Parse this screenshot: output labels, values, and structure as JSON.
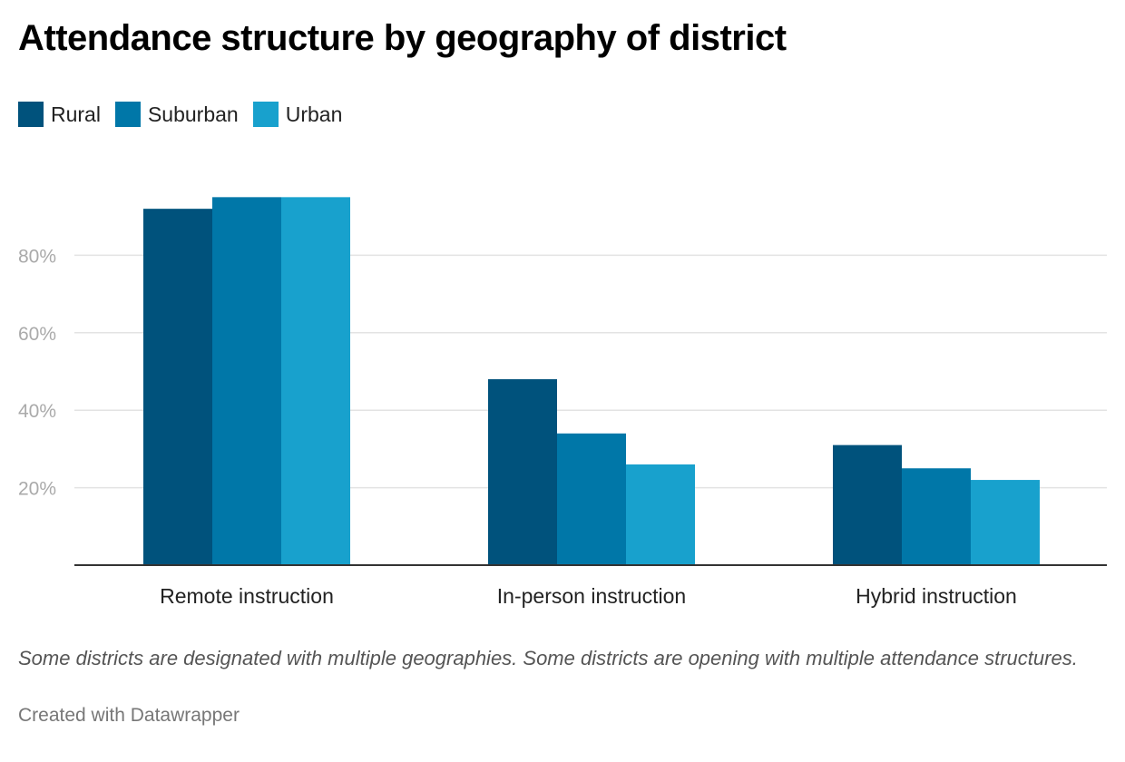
{
  "chart_data": {
    "type": "bar",
    "title": "Attendance structure by geography of district",
    "categories": [
      "Remote instruction",
      "In-person instruction",
      "Hybrid instruction"
    ],
    "series": [
      {
        "name": "Rural",
        "color": "#00527c",
        "values": [
          92,
          48,
          31
        ]
      },
      {
        "name": "Suburban",
        "color": "#0077a8",
        "values": [
          95,
          34,
          25
        ]
      },
      {
        "name": "Urban",
        "color": "#18a1cd",
        "values": [
          95,
          26,
          22
        ]
      }
    ],
    "ylim": [
      0,
      95
    ],
    "yticks": [
      20,
      40,
      60,
      80
    ],
    "ytick_labels": [
      "20%",
      "40%",
      "60%",
      "80%"
    ],
    "grid": true,
    "legend": "top-left",
    "xlabel": "",
    "ylabel": ""
  },
  "notes": "Some districts are designated with multiple geographies. Some districts are opening with multiple attendance structures.",
  "credit": "Created with Datawrapper"
}
